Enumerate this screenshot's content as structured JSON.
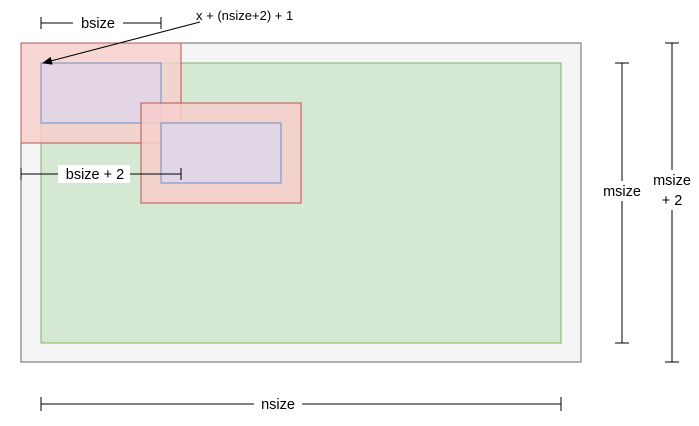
{
  "labels": {
    "bsize": "bsize",
    "x_formula": "x + (nsize+2) + 1",
    "bsize_plus_2": "bsize + 2",
    "msize": "msize",
    "msize_plus_2_line1": "msize",
    "msize_plus_2_line2": "+ 2",
    "nsize": "nsize"
  },
  "colors": {
    "outer_fill": "#f5f5f5",
    "outer_stroke": "#666666",
    "inner_fill": "#d5e8d4",
    "inner_stroke": "#82b366",
    "block_fill": "#f8cecc",
    "block_stroke": "#b85450",
    "core_fill": "#e1d5e7",
    "core_stroke": "#6c8ebf"
  }
}
